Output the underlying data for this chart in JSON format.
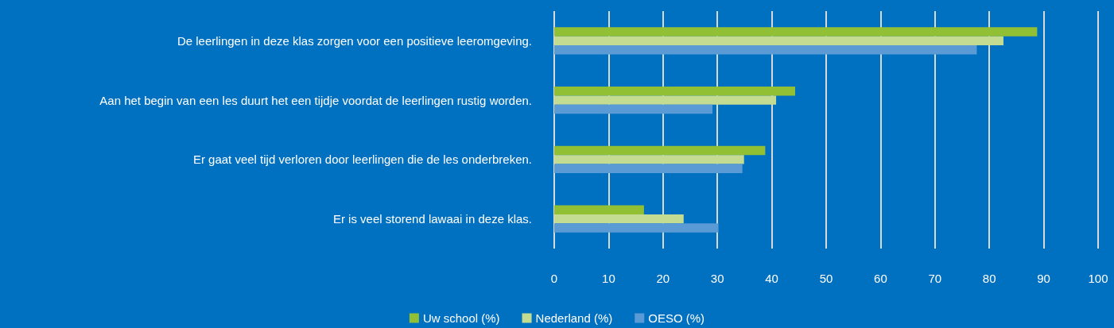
{
  "chart_data": {
    "type": "bar",
    "orientation": "horizontal",
    "categories": [
      "De leerlingen in deze klas zorgen voor een positieve leeromgeving.",
      "Aan het begin van een les duurt het een tijdje voordat de leerlingen rustig worden.",
      "Er gaat veel tijd verloren door leerlingen die de les onderbreken.",
      "Er is veel storend lawaai in deze klas."
    ],
    "series": [
      {
        "name": "Uw school (%)",
        "color": "#92c035",
        "values": [
          88.8,
          44.3,
          38.8,
          16.5
        ]
      },
      {
        "name": "Nederland (%)",
        "color": "#c4dc91",
        "values": [
          82.6,
          40.8,
          34.9,
          23.8
        ]
      },
      {
        "name": "OESO (%)",
        "color": "#5b9bd5",
        "values": [
          77.7,
          29.1,
          34.6,
          30.2
        ]
      }
    ],
    "xlim": [
      0,
      100
    ],
    "xticks": [
      0,
      10,
      20,
      30,
      40,
      50,
      60,
      70,
      80,
      90,
      100
    ],
    "grid": "x",
    "legend": "bottom"
  }
}
